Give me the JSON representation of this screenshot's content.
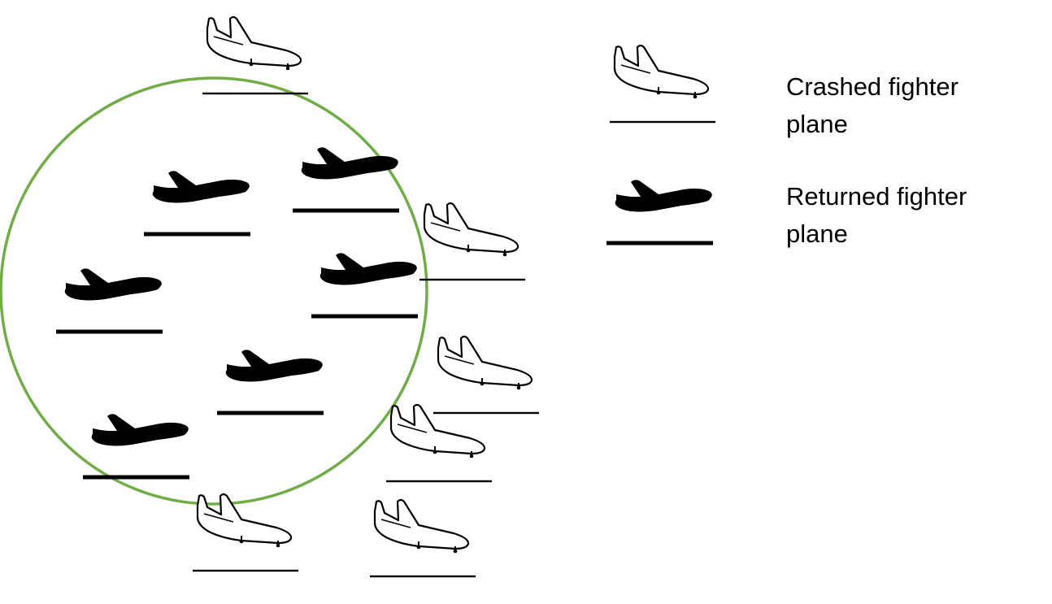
{
  "colors": {
    "circle": "#70ad47",
    "plane": "#000000",
    "background": "#ffffff"
  },
  "legend": {
    "crashed": {
      "label": "Crashed fighter plane",
      "line1": "Crashed fighter",
      "line2": "plane",
      "icon": "outline-plane-icon"
    },
    "returned": {
      "label": "Returned fighter plane",
      "line1": "Returned fighter",
      "line2": "plane",
      "icon": "filled-plane-icon"
    }
  },
  "counts": {
    "crashed_planes": 7,
    "returned_planes": 7
  }
}
